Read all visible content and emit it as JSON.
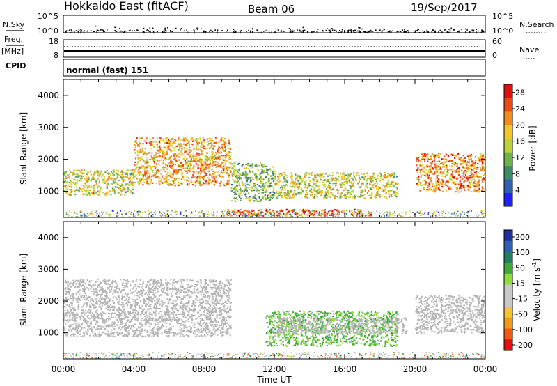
{
  "header": {
    "radar": "Hokkaido East (fitACF)",
    "beam": "Beam 06",
    "date": "19/Sep/2017"
  },
  "noise_panel": {
    "left_label": "N.Sky",
    "right_label": "N.Search",
    "yticks_left": [
      "10^5",
      "10^0"
    ],
    "yticks_right": [
      "10^5",
      "10^0"
    ]
  },
  "freq_panel": {
    "label_line1": "Freq.",
    "label_line2": "[MHz]",
    "right_label": "Nave",
    "yticks_left": [
      "18",
      "8"
    ],
    "yticks_right": [
      "60",
      "0"
    ]
  },
  "cpid_panel": {
    "label": "CPID",
    "value": "normal (fast) 151"
  },
  "colors": {
    "power_scale": [
      "#1f1fff",
      "#2f5fb0",
      "#3c8c6a",
      "#6fb24a",
      "#bcd23a",
      "#f3c72c",
      "#f08b1c",
      "#e84a12",
      "#e01010"
    ],
    "velocity_scale": [
      "#e01010",
      "#f05a10",
      "#f09a1a",
      "#f3c72c",
      "#c8c8c8",
      "#c8c8c8",
      "#8fdc3a",
      "#3faa3a",
      "#1f7f5f",
      "#2f5fb0",
      "#1f2f9f"
    ],
    "ground_scatter": "#b4b4b4"
  },
  "chart_data": [
    {
      "type": "heatmap",
      "title": "",
      "xlabel": "Time UT",
      "ylabel": "Slant Range [km]",
      "x_range_hours": [
        0,
        24
      ],
      "ylim": [
        180,
        4500
      ],
      "xticks": [
        "00:00",
        "04:00",
        "08:00",
        "12:00",
        "16:00",
        "20:00",
        "00:00"
      ],
      "yticks": [
        "1000",
        "2000",
        "3000",
        "4000"
      ],
      "colorbar": {
        "label": "Power [dB]",
        "ticks": [
          "4",
          "8",
          "12",
          "16",
          "20",
          "24",
          "28"
        ],
        "range": [
          0,
          30
        ]
      },
      "regions": [
        {
          "t_start": 0.0,
          "t_end": 4.0,
          "range_low": 900,
          "range_high": 1700,
          "power_db": 16
        },
        {
          "t_start": 4.0,
          "t_end": 9.5,
          "range_low": 1200,
          "range_high": 2700,
          "power_db": 20
        },
        {
          "t_start": 9.5,
          "t_end": 12.0,
          "range_low": 700,
          "range_high": 1900,
          "power_db": 12
        },
        {
          "t_start": 12.0,
          "t_end": 19.0,
          "range_low": 800,
          "range_high": 1600,
          "power_db": 16
        },
        {
          "t_start": 20.0,
          "t_end": 24.0,
          "range_low": 1000,
          "range_high": 2200,
          "power_db": 22
        },
        {
          "t_start": 9.0,
          "t_end": 17.5,
          "range_low": 250,
          "range_high": 450,
          "power_db": 24
        }
      ]
    },
    {
      "type": "heatmap",
      "title": "",
      "xlabel": "Time UT",
      "ylabel": "Slant Range [km]",
      "x_range_hours": [
        0,
        24
      ],
      "ylim": [
        180,
        4500
      ],
      "xticks": [
        "00:00",
        "04:00",
        "08:00",
        "12:00",
        "16:00",
        "20:00",
        "00:00"
      ],
      "yticks": [
        "1000",
        "2000",
        "3000",
        "4000"
      ],
      "colorbar": {
        "label_main": "Velocity [m s",
        "label_sup": "-1",
        "label_end": "]",
        "ticks": [
          "200",
          "100",
          "50",
          "15",
          "-15",
          "-50",
          "-100",
          "-200"
        ],
        "range": [
          -250,
          250
        ]
      },
      "regions": [
        {
          "t_start": 0.0,
          "t_end": 9.5,
          "range_low": 900,
          "range_high": 2700,
          "velocity": 0,
          "ground_scatter": true
        },
        {
          "t_start": 11.5,
          "t_end": 19.0,
          "range_low": 600,
          "range_high": 1700,
          "velocity": 40
        },
        {
          "t_start": 12.0,
          "t_end": 19.5,
          "range_low": 1000,
          "range_high": 1500,
          "velocity": 0,
          "ground_scatter": true
        },
        {
          "t_start": 20.0,
          "t_end": 24.0,
          "range_low": 1000,
          "range_high": 2200,
          "velocity": 0,
          "ground_scatter": true
        }
      ]
    }
  ]
}
